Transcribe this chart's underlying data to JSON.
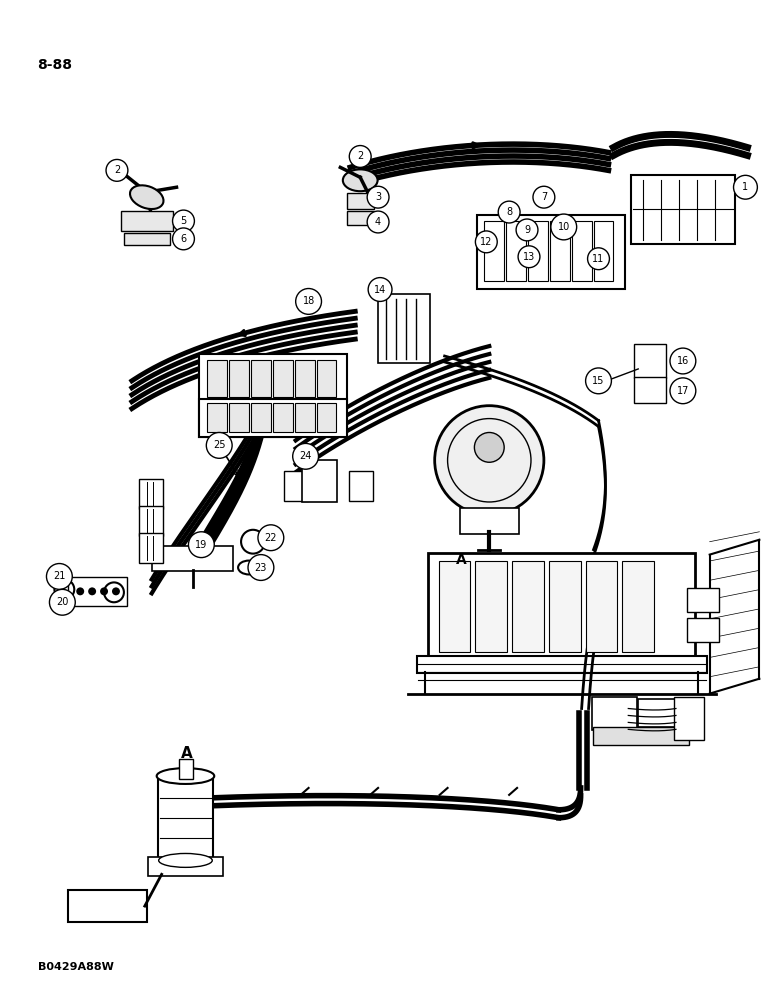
{
  "page_number": "8-88",
  "part_code": "B0429A88W",
  "background_color": "#ffffff",
  "line_color": "#000000"
}
